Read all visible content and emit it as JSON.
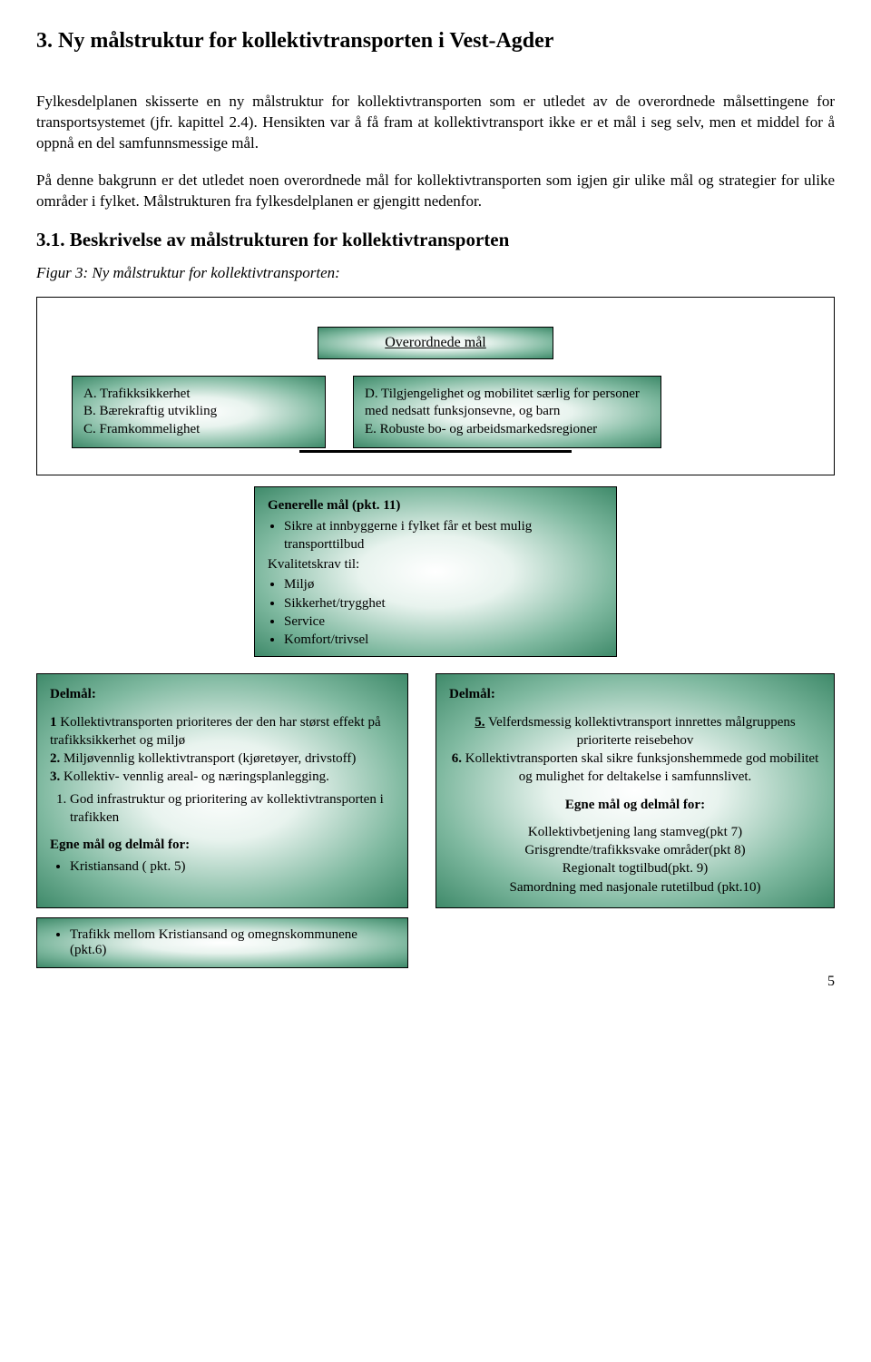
{
  "heading_main": "3. Ny målstruktur for kollektivtransporten i Vest-Agder",
  "para1": "Fylkesdelplanen skisserte en ny målstruktur for kollektivtransporten som er utledet av de overordnede målsettingene for transportsystemet (jfr. kapittel 2.4). Hensikten var å få fram at kollektivtransport ikke er et mål i seg selv, men et middel for å oppnå en del samfunnsmessige mål.",
  "para2": "På denne bakgrunn er det utledet noen overordnede mål for kollektivtransporten som igjen gir ulike mål og strategier for ulike områder i fylket. Målstrukturen fra fylkesdelplanen er gjengitt nedenfor.",
  "heading_sub": "3.1. Beskrivelse av målstrukturen for kollektivtransporten",
  "fig_caption": "Figur 3: Ny målstruktur for kollektivtransporten:",
  "top_box_label": "Overordnede mål",
  "left_box": {
    "a": "A. Trafikksikkerhet",
    "b": "B. Bærekraftig utvikling",
    "c": "C. Framkommelighet"
  },
  "right_box": {
    "d": "D. Tilgjengelighet og mobilitet særlig for personer med nedsatt funksjonsevne, og barn",
    "e": "E. Robuste bo- og arbeidsmarkedsregioner"
  },
  "mid_box": {
    "title": "Generelle mål (pkt. 11)",
    "line1": "Sikre at innbyggerne i fylket får et best mulig transporttilbud",
    "kval": "Kvalitetskrav til:",
    "items": [
      "Miljø",
      "Sikkerhet/trygghet",
      "Service",
      "Komfort/trivsel"
    ]
  },
  "lower_left": {
    "title": "Delmål:",
    "l1_lead": "1",
    "l1": " Kollektivtransporten prioriteres der den har størst effekt på trafikksikkerhet og miljø",
    "l2_lead": "2.",
    "l2": " Miljøvennlig kollektivtransport (kjøretøyer, drivstoff)",
    "l3_lead": "3.",
    "l3": " Kollektiv- vennlig areal- og næringsplanlegging.",
    "ol1": "God infrastruktur og prioritering av kollektivtransporten i trafikken",
    "eg_title": "Egne mål og delmål for:",
    "eg1": "Kristiansand ( pkt. 5)"
  },
  "lower_right": {
    "title": "Delmål:",
    "l5_lead": "5.",
    "l5": " Velferdsmessig kollektivtransport innrettes målgruppens prioriterte reisebehov",
    "l6_lead": "6.",
    "l6": " Kollektivtransporten skal sikre funksjonshemmede god mobilitet og mulighet for deltakelse i samfunnslivet.",
    "eg_title": "Egne mål og delmål for:",
    "r1": "Kollektivbetjening lang stamveg(pkt 7)",
    "r2": "Grisgrendte/trafikksvake områder(pkt 8)",
    "r3": "Regionalt togtilbud(pkt. 9)",
    "r4": "Samordning med nasjonale rutetilbud (pkt.10)"
  },
  "extra_box": {
    "item": "Trafikk mellom Kristiansand og omegnskommunene (pkt.6)"
  },
  "page_num": "5",
  "colors": {
    "box_border": "#000000",
    "box_grad_inner": "#ffffff",
    "box_grad_mid": "#7fb9a0",
    "box_grad_outer": "#3f8a6a",
    "text": "#000000",
    "page_bg": "#ffffff"
  }
}
